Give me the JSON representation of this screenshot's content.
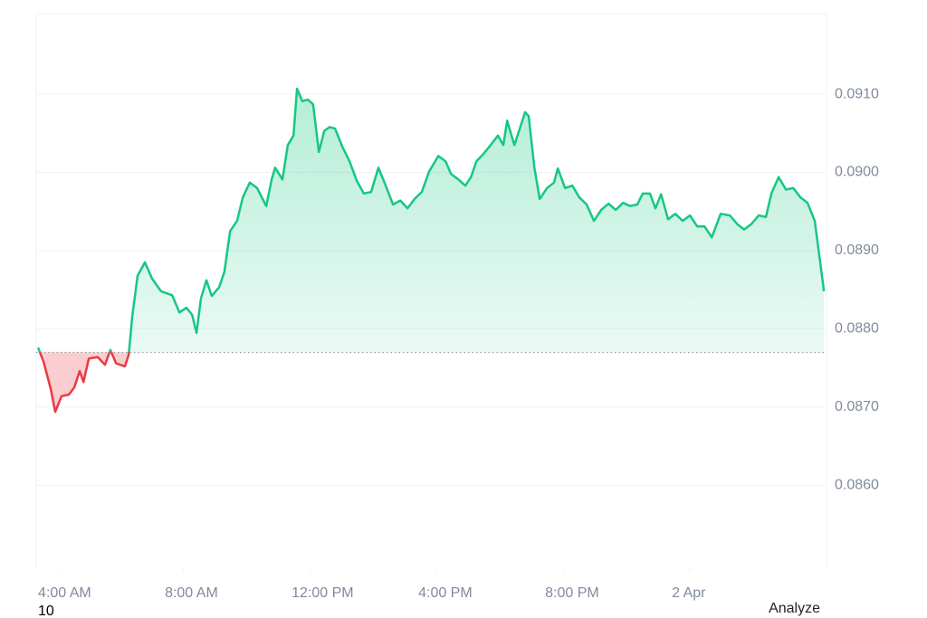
{
  "chart_data": {
    "type": "baseline-line",
    "x": [
      3.43,
      3.6,
      3.83,
      3.97,
      4.17,
      4.4,
      4.57,
      4.74,
      4.86,
      5.03,
      5.31,
      5.54,
      5.71,
      5.89,
      6.17,
      6.29,
      6.4,
      6.57,
      6.8,
      7.03,
      7.31,
      7.66,
      7.89,
      8.11,
      8.29,
      8.43,
      8.57,
      8.74,
      8.91,
      9.14,
      9.31,
      9.49,
      9.71,
      9.89,
      10.11,
      10.34,
      10.63,
      10.8,
      10.91,
      11.14,
      11.31,
      11.49,
      11.6,
      11.77,
      11.94,
      12.11,
      12.29,
      12.46,
      12.63,
      12.8,
      13.03,
      13.26,
      13.49,
      13.71,
      13.94,
      14.17,
      14.4,
      14.63,
      14.86,
      15.09,
      15.31,
      15.54,
      15.77,
      16.06,
      16.29,
      16.46,
      16.69,
      16.91,
      17.09,
      17.26,
      17.49,
      17.71,
      17.94,
      18.11,
      18.23,
      18.46,
      18.63,
      18.8,
      18.91,
      19.09,
      19.26,
      19.49,
      19.71,
      19.83,
      20.06,
      20.29,
      20.51,
      20.74,
      20.97,
      21.2,
      21.43,
      21.66,
      21.89,
      22.11,
      22.34,
      22.51,
      22.74,
      22.91,
      23.09,
      23.31,
      23.54,
      23.77,
      24.0,
      24.23,
      24.46,
      24.69,
      24.97,
      25.26,
      25.49,
      25.71,
      25.94,
      26.17,
      26.4,
      26.57,
      26.8,
      27.03,
      27.26,
      27.49,
      27.71,
      27.94,
      28.11,
      28.23
    ],
    "values": [
      0.08776,
      0.08758,
      0.08723,
      0.08694,
      0.08714,
      0.08716,
      0.08725,
      0.08746,
      0.08732,
      0.08762,
      0.08764,
      0.08754,
      0.08773,
      0.08756,
      0.08752,
      0.08767,
      0.08816,
      0.08868,
      0.08885,
      0.08864,
      0.08848,
      0.08843,
      0.08821,
      0.08827,
      0.08818,
      0.08795,
      0.08839,
      0.08862,
      0.08842,
      0.08853,
      0.08873,
      0.08925,
      0.08938,
      0.08968,
      0.08987,
      0.0898,
      0.08957,
      0.08991,
      0.09006,
      0.08991,
      0.09035,
      0.09047,
      0.09107,
      0.09091,
      0.09093,
      0.09087,
      0.09026,
      0.09053,
      0.09058,
      0.09056,
      0.09033,
      0.09014,
      0.08989,
      0.08973,
      0.08975,
      0.09006,
      0.08983,
      0.08959,
      0.08964,
      0.08954,
      0.08966,
      0.08975,
      0.09001,
      0.09021,
      0.09014,
      0.08998,
      0.08991,
      0.08983,
      0.08994,
      0.09014,
      0.09024,
      0.09035,
      0.09047,
      0.09035,
      0.09066,
      0.09035,
      0.09056,
      0.09077,
      0.09072,
      0.09006,
      0.08966,
      0.0898,
      0.08987,
      0.09005,
      0.0898,
      0.08983,
      0.08968,
      0.08959,
      0.08938,
      0.08952,
      0.0896,
      0.08952,
      0.08961,
      0.08957,
      0.08959,
      0.08973,
      0.08973,
      0.08954,
      0.08972,
      0.0894,
      0.08947,
      0.08938,
      0.08945,
      0.08931,
      0.08931,
      0.08917,
      0.08947,
      0.08945,
      0.08934,
      0.08927,
      0.08934,
      0.08945,
      0.08943,
      0.08973,
      0.08994,
      0.08978,
      0.0898,
      0.08968,
      0.08961,
      0.08938,
      0.08885,
      0.08848
    ],
    "baseline": 0.0877,
    "up_color": "#16c784",
    "down_color": "#ea3943",
    "xlim": [
      3.37,
      28.31
    ],
    "xticks": [
      {
        "value": 4,
        "label": "4:00 AM"
      },
      {
        "value": 8,
        "label": "8:00 AM"
      },
      {
        "value": 12,
        "label": "12:00 PM"
      },
      {
        "value": 16,
        "label": "4:00 PM"
      },
      {
        "value": 20,
        "label": "8:00 PM"
      },
      {
        "value": 24,
        "label": "2 Apr"
      }
    ],
    "ylim": [
      0.08494,
      0.09203
    ],
    "yticks": [
      {
        "value": 0.086,
        "label": "0.0860"
      },
      {
        "value": 0.087,
        "label": "0.0870"
      },
      {
        "value": 0.088,
        "label": "0.0880"
      },
      {
        "value": 0.089,
        "label": "0.0890"
      },
      {
        "value": 0.09,
        "label": "0.0900"
      },
      {
        "value": 0.091,
        "label": "0.0910"
      }
    ],
    "grid": true,
    "footer_left": "10",
    "button": "Analyze"
  }
}
